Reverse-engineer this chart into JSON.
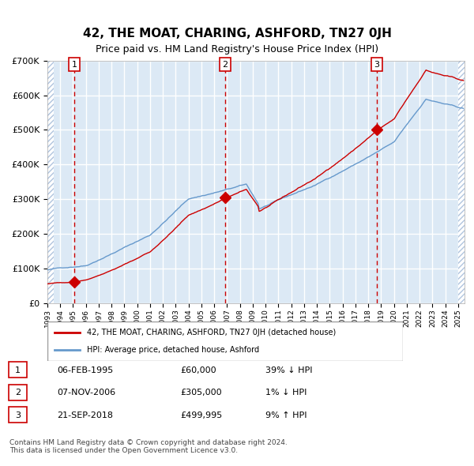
{
  "title": "42, THE MOAT, CHARING, ASHFORD, TN27 0JH",
  "subtitle": "Price paid vs. HM Land Registry's House Price Index (HPI)",
  "sales": [
    {
      "date": "1995-02-06",
      "price": 60000,
      "label": "1",
      "pct": "39%",
      "dir": "↓"
    },
    {
      "date": "2006-11-07",
      "price": 305000,
      "label": "2",
      "pct": "1%",
      "dir": "↓"
    },
    {
      "date": "2018-09-21",
      "price": 499995,
      "label": "3",
      "pct": "9%",
      "dir": "↑"
    }
  ],
  "legend_property": "42, THE MOAT, CHARING, ASHFORD, TN27 0JH (detached house)",
  "legend_hpi": "HPI: Average price, detached house, Ashford",
  "table_rows": [
    {
      "num": "1",
      "date": "06-FEB-1995",
      "price": "£60,000",
      "pct": "39% ↓ HPI"
    },
    {
      "num": "2",
      "date": "07-NOV-2006",
      "price": "£305,000",
      "pct": "1% ↓ HPI"
    },
    {
      "num": "3",
      "date": "21-SEP-2018",
      "price": "£499,995",
      "pct": "9% ↑ HPI"
    }
  ],
  "footer": "Contains HM Land Registry data © Crown copyright and database right 2024.\nThis data is licensed under the Open Government Licence v3.0.",
  "ylim": [
    0,
    700000
  ],
  "yticks": [
    0,
    100000,
    200000,
    300000,
    400000,
    500000,
    600000,
    700000
  ],
  "bg_color": "#dce9f5",
  "plot_bg": "#dce9f5",
  "hatch_color": "#b0c4de",
  "red_color": "#cc0000",
  "blue_color": "#6699cc",
  "grid_color": "#ffffff",
  "dashed_color": "#cc0000"
}
